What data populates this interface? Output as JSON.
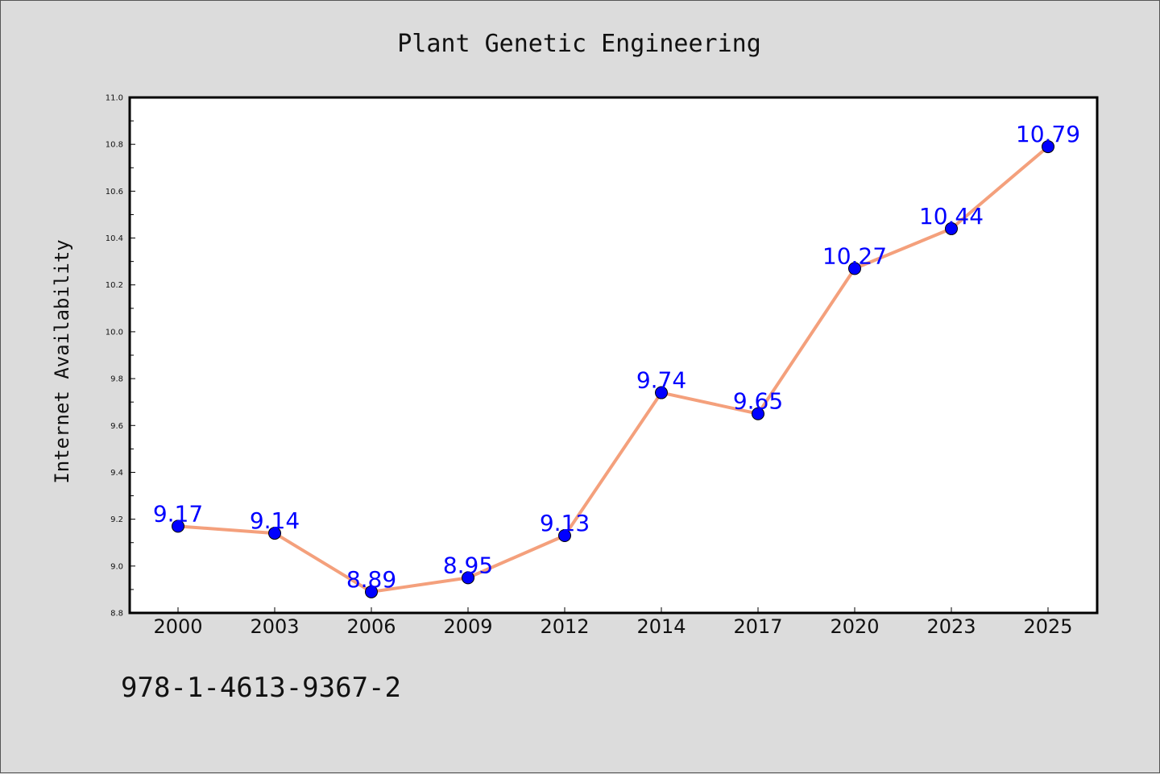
{
  "chart_data": {
    "type": "line",
    "title": "Plant Genetic Engineering",
    "xlabel": "",
    "ylabel": "Internet Availability",
    "categories": [
      "2000",
      "2003",
      "2006",
      "2009",
      "2012",
      "2014",
      "2017",
      "2020",
      "2023",
      "2025"
    ],
    "series": [
      {
        "values": [
          9.17,
          9.14,
          8.89,
          8.95,
          9.13,
          9.74,
          9.65,
          10.27,
          10.44,
          10.79
        ],
        "line_color": "#f4a07c",
        "marker_color": "#0000ff"
      }
    ],
    "data_labels": [
      "9.17",
      "9.14",
      "8.89",
      "8.95",
      "9.13",
      "9.74",
      "9.65",
      "10.27",
      "10.44",
      "10.79"
    ],
    "ylim": [
      8.8,
      11.0
    ],
    "yticks": [
      "8.8",
      "9.0",
      "9.2",
      "9.4",
      "9.6",
      "9.8",
      "10.0",
      "10.2",
      "10.4",
      "10.6",
      "10.8",
      "11.0"
    ],
    "grid": false,
    "legend": "none"
  },
  "footer_text": "978-1-4613-9367-2"
}
